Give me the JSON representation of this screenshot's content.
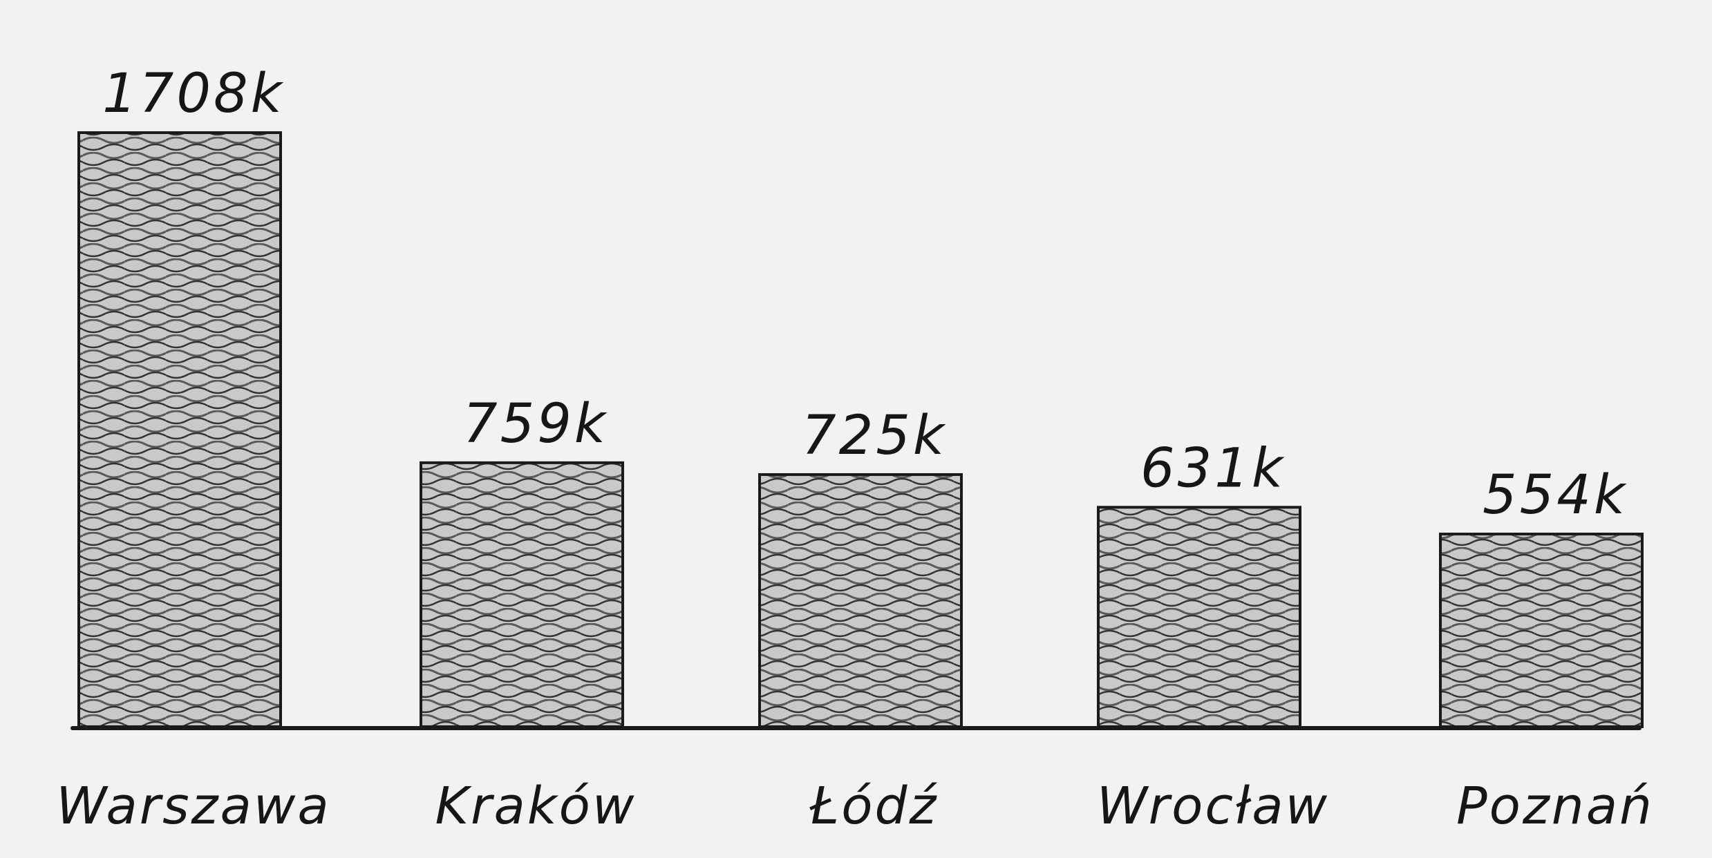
{
  "chart_data": {
    "type": "bar",
    "categories": [
      "Warszawa",
      "Kraków",
      "Łódź",
      "Wrocław",
      "Poznań"
    ],
    "values": [
      1708,
      759,
      725,
      631,
      554
    ],
    "value_labels": [
      "1708k",
      "759k",
      "725k",
      "631k",
      "554k"
    ],
    "ylim": [
      0,
      1708
    ],
    "grid": false,
    "legend": "none",
    "colors": {
      "bar_fill": "#b4b4b4",
      "ink": "#1a1a1a",
      "paper": "#f2f2f0"
    }
  }
}
